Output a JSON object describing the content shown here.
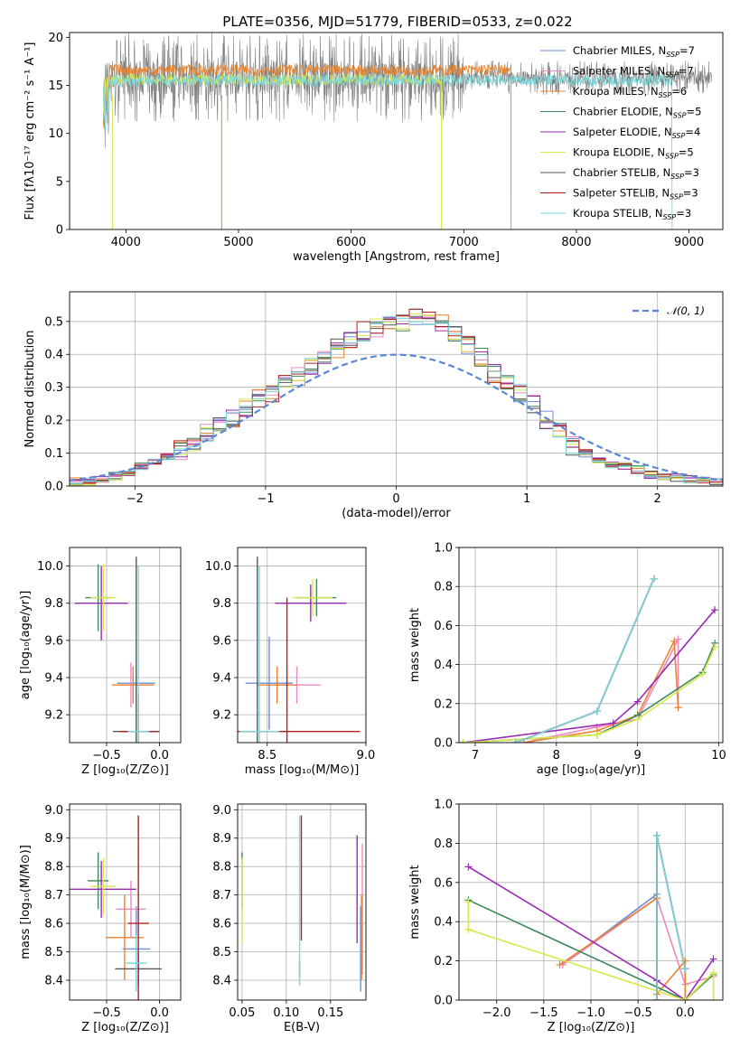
{
  "title": "PLATE=0356, MJD=51779, FIBERID=0533, z=0.022",
  "colors": {
    "Chabrier MILES": "#6b8fd8",
    "Salpeter MILES": "#ee88c4",
    "Kroupa MILES": "#e8832e",
    "Chabrier ELODIE": "#3a8a5a",
    "Salpeter ELODIE": "#9a2ab5",
    "Kroupa ELODIE": "#d6e84a",
    "Chabrier STELIB": "#555555",
    "Salpeter STELIB": "#b41e1e",
    "Kroupa STELIB": "#78d8dc",
    "data": "#808080",
    "gauss": "#5b86d6"
  },
  "chart_data": [
    {
      "id": "spectrum",
      "type": "line",
      "xlabel": "wavelength [Angstrom, rest frame]",
      "ylabel": "Flux [fλ10⁻¹⁷ erg cm⁻² s⁻¹ A⁻¹]",
      "xlim": [
        3500,
        9300
      ],
      "ylim": [
        0,
        20.5
      ],
      "xticks": [
        4000,
        5000,
        6000,
        7000,
        8000,
        9000
      ],
      "yticks": [
        0,
        5,
        10,
        15,
        20
      ],
      "grid": false,
      "legend": "upper right",
      "legend_entries": [
        {
          "label": "Chabrier MILES, N",
          "sub": "SSP",
          "suffix": "=7",
          "model": "Chabrier MILES"
        },
        {
          "label": "Salpeter MILES, N",
          "sub": "SSP",
          "suffix": "=7",
          "model": "Salpeter MILES"
        },
        {
          "label": "Kroupa MILES, N",
          "sub": "SSP",
          "suffix": "=6",
          "model": "Kroupa MILES"
        },
        {
          "label": "Chabrier ELODIE, N",
          "sub": "SSP",
          "suffix": "=5",
          "model": "Chabrier ELODIE"
        },
        {
          "label": "Salpeter ELODIE, N",
          "sub": "SSP",
          "suffix": "=4",
          "model": "Salpeter ELODIE"
        },
        {
          "label": "Kroupa ELODIE, N",
          "sub": "SSP",
          "suffix": "=5",
          "model": "Kroupa ELODIE"
        },
        {
          "label": "Chabrier STELIB, N",
          "sub": "SSP",
          "suffix": "=3",
          "model": "Chabrier STELIB"
        },
        {
          "label": "Salpeter STELIB, N",
          "sub": "SSP",
          "suffix": "=3",
          "model": "Salpeter STELIB"
        },
        {
          "label": "Kroupa STELIB, N",
          "sub": "SSP",
          "suffix": "=3",
          "model": "Kroupa STELIB"
        }
      ],
      "data_range": [
        3800,
        9200
      ],
      "data_level": 15.8,
      "models": [
        {
          "model": "Kroupa MILES",
          "range": [
            3800,
            7420
          ],
          "level": 16.6
        },
        {
          "model": "Kroupa ELODIE",
          "range": [
            3800,
            6800
          ],
          "level": 15.6
        },
        {
          "model": "Kroupa STELIB",
          "range": [
            3800,
            8850
          ],
          "level": 15.5
        }
      ]
    },
    {
      "id": "residuals",
      "type": "histogram",
      "xlabel": "(data-model)/error",
      "ylabel": "Normed distribution",
      "xlim": [
        -2.5,
        2.5
      ],
      "ylim": [
        0,
        0.59
      ],
      "xticks": [
        -2,
        -1,
        0,
        1,
        2
      ],
      "yticks": [
        0.0,
        0.1,
        0.2,
        0.3,
        0.4,
        0.5
      ],
      "ytick_labels": [
        "0.0",
        "0.1",
        "0.2",
        "0.3",
        "0.4",
        "0.5"
      ],
      "grid": true,
      "legend": "upper right",
      "gauss_label": "𝒩(0, 1)",
      "bin_width": 0.1,
      "bin_start": -2.5,
      "base_heights": [
        0.015,
        0.015,
        0.02,
        0.03,
        0.035,
        0.06,
        0.07,
        0.09,
        0.11,
        0.125,
        0.16,
        0.19,
        0.21,
        0.24,
        0.27,
        0.28,
        0.31,
        0.33,
        0.36,
        0.39,
        0.42,
        0.45,
        0.47,
        0.48,
        0.49,
        0.5,
        0.52,
        0.51,
        0.49,
        0.47,
        0.43,
        0.39,
        0.34,
        0.31,
        0.28,
        0.25,
        0.2,
        0.16,
        0.12,
        0.1,
        0.08,
        0.065,
        0.06,
        0.05,
        0.035,
        0.03,
        0.025,
        0.02,
        0.015,
        0.015
      ]
    },
    {
      "id": "age-vs-Z",
      "type": "errorbar",
      "xlabel": "Z [log₁₀(Z/Z⊙)]",
      "ylabel": "age  [log₁₀(age/yr)]",
      "xlim": [
        -0.85,
        0.2
      ],
      "ylim": [
        9.05,
        10.1
      ],
      "xticks": [
        -0.5,
        0.0
      ],
      "xtick_labels": [
        "−0.5",
        "0.0"
      ],
      "yticks": [
        9.2,
        9.4,
        9.6,
        9.8,
        10.0
      ],
      "ytick_labels": [
        "9.2",
        "9.4",
        "9.6",
        "9.8",
        "10.0"
      ],
      "grid": true,
      "points": [
        {
          "model": "Chabrier MILES",
          "x": -0.22,
          "y": 9.37,
          "xerr": 0.18,
          "yerr": 0.1
        },
        {
          "model": "Salpeter MILES",
          "x": -0.27,
          "y": 9.36,
          "xerr": 0.14,
          "yerr": 0.12
        },
        {
          "model": "Kroupa MILES",
          "x": -0.25,
          "y": 9.36,
          "xerr": 0.2,
          "yerr": 0.1
        },
        {
          "model": "Chabrier ELODIE",
          "x": -0.58,
          "y": 9.83,
          "xerr": 0.12,
          "yerr": 0.18
        },
        {
          "model": "Salpeter ELODIE",
          "x": -0.55,
          "y": 9.8,
          "xerr": 0.25,
          "yerr": 0.2
        },
        {
          "model": "Kroupa ELODIE",
          "x": -0.53,
          "y": 9.83,
          "xerr": 0.12,
          "yerr": 0.18
        },
        {
          "model": "Chabrier STELIB",
          "x": -0.22,
          "y": 9.11,
          "xerr": 0.22,
          "yerr": 0.94
        },
        {
          "model": "Salpeter STELIB",
          "x": -0.2,
          "y": 9.11,
          "xerr": 0.18,
          "yerr": 0.2
        },
        {
          "model": "Kroupa STELIB",
          "x": -0.2,
          "y": 9.11,
          "xerr": 0.1,
          "yerr": 0.89
        }
      ]
    },
    {
      "id": "age-vs-mass",
      "type": "errorbar",
      "xlabel": "mass [log₁₀(M/M⊙)]",
      "ylabel": "",
      "xlim": [
        8.35,
        9.0
      ],
      "ylim": [
        9.05,
        10.1
      ],
      "xticks": [
        8.5,
        9.0
      ],
      "xtick_labels": [
        "8.5",
        "9.0"
      ],
      "yticks": [
        9.2,
        9.4,
        9.6,
        9.8,
        10.0
      ],
      "ytick_labels": [
        "9.2",
        "9.4",
        "9.6",
        "9.8",
        "10.0"
      ],
      "grid": true,
      "points": [
        {
          "model": "Chabrier MILES",
          "x": 8.51,
          "y": 9.37,
          "xerr": 0.12,
          "yerr": 0.25
        },
        {
          "model": "Salpeter MILES",
          "x": 8.65,
          "y": 9.36,
          "xerr": 0.12,
          "yerr": 0.1
        },
        {
          "model": "Kroupa MILES",
          "x": 8.55,
          "y": 9.36,
          "xerr": 0.1,
          "yerr": 0.1
        },
        {
          "model": "Chabrier ELODIE",
          "x": 8.75,
          "y": 9.83,
          "xerr": 0.1,
          "yerr": 0.1
        },
        {
          "model": "Salpeter ELODIE",
          "x": 8.72,
          "y": 9.8,
          "xerr": 0.18,
          "yerr": 0.1
        },
        {
          "model": "Kroupa ELODIE",
          "x": 8.73,
          "y": 9.83,
          "xerr": 0.1,
          "yerr": 0.1
        },
        {
          "model": "Chabrier STELIB",
          "x": 8.45,
          "y": 9.11,
          "xerr": 0.06,
          "yerr": 0.94
        },
        {
          "model": "Salpeter STELIB",
          "x": 8.6,
          "y": 9.11,
          "xerr": 0.37,
          "yerr": 0.72
        },
        {
          "model": "Kroupa STELIB",
          "x": 8.46,
          "y": 9.11,
          "xerr": 0.1,
          "yerr": 0.89
        }
      ]
    },
    {
      "id": "weight-vs-age",
      "type": "line",
      "xlabel": "age  [log₁₀(age/yr)]",
      "ylabel": "mass weight",
      "xlim": [
        6.8,
        10.05
      ],
      "ylim": [
        0,
        1.0
      ],
      "xticks": [
        7,
        8,
        9,
        10
      ],
      "xtick_labels": [
        "7",
        "8",
        "9",
        "10"
      ],
      "yticks": [
        0.0,
        0.2,
        0.4,
        0.6,
        0.8,
        1.0
      ],
      "ytick_labels": [
        "0.0",
        "0.2",
        "0.4",
        "0.6",
        "0.8",
        "1.0"
      ],
      "grid": true,
      "series": [
        {
          "model": "Chabrier MILES",
          "x": [
            7.5,
            8.5,
            9.2
          ],
          "y": [
            0.0,
            0.16,
            0.84
          ]
        },
        {
          "model": "Salpeter MILES",
          "x": [
            7.6,
            8.5,
            9.0,
            9.5,
            9.5
          ],
          "y": [
            0.0,
            0.08,
            0.12,
            0.53,
            0.18
          ]
        },
        {
          "model": "Kroupa MILES",
          "x": [
            7.6,
            8.5,
            9.0,
            9.45,
            9.5
          ],
          "y": [
            0.0,
            0.06,
            0.14,
            0.52,
            0.18
          ]
        },
        {
          "model": "Chabrier ELODIE",
          "x": [
            6.85,
            8.5,
            9.0,
            9.8,
            9.95
          ],
          "y": [
            0.0,
            0.04,
            0.14,
            0.36,
            0.51
          ]
        },
        {
          "model": "Salpeter ELODIE",
          "x": [
            6.85,
            8.7,
            9.0,
            9.95
          ],
          "y": [
            0.0,
            0.1,
            0.21,
            0.68
          ]
        },
        {
          "model": "Kroupa ELODIE",
          "x": [
            6.85,
            8.5,
            9.0,
            9.8,
            9.95
          ],
          "y": [
            0.0,
            0.04,
            0.12,
            0.35,
            0.49
          ]
        },
        {
          "model": "Chabrier STELIB",
          "x": [
            7.5,
            8.5,
            9.2
          ],
          "y": [
            0.0,
            0.16,
            0.84
          ]
        },
        {
          "model": "Salpeter STELIB",
          "x": [
            7.5,
            8.5,
            9.2
          ],
          "y": [
            0.0,
            0.16,
            0.84
          ]
        },
        {
          "model": "Kroupa STELIB",
          "x": [
            7.5,
            8.5,
            9.2
          ],
          "y": [
            0.0,
            0.16,
            0.84
          ]
        }
      ]
    },
    {
      "id": "mass-vs-Z",
      "type": "errorbar",
      "xlabel": "Z [log₁₀(Z/Z⊙)]",
      "ylabel": "mass [log₁₀(M/M⊙)]",
      "xlim": [
        -0.85,
        0.2
      ],
      "ylim": [
        8.33,
        9.02
      ],
      "xticks": [
        -0.5,
        0.0
      ],
      "xtick_labels": [
        "−0.5",
        "0.0"
      ],
      "yticks": [
        8.4,
        8.5,
        8.6,
        8.7,
        8.8,
        8.9,
        9.0
      ],
      "ytick_labels": [
        "8.4",
        "8.5",
        "8.6",
        "8.7",
        "8.8",
        "8.9",
        "9.0"
      ],
      "grid": true,
      "points": [
        {
          "model": "Chabrier MILES",
          "x": -0.22,
          "y": 8.51,
          "xerr": 0.13,
          "yerr": 0.15
        },
        {
          "model": "Salpeter MILES",
          "x": -0.27,
          "y": 8.65,
          "xerr": 0.14,
          "yerr": 0.1
        },
        {
          "model": "Kroupa MILES",
          "x": -0.33,
          "y": 8.55,
          "xerr": 0.18,
          "yerr": 0.15
        },
        {
          "model": "Chabrier ELODIE",
          "x": -0.58,
          "y": 8.75,
          "xerr": 0.1,
          "yerr": 0.1
        },
        {
          "model": "Salpeter ELODIE",
          "x": -0.55,
          "y": 8.72,
          "xerr": 0.33,
          "yerr": 0.1
        },
        {
          "model": "Kroupa ELODIE",
          "x": -0.53,
          "y": 8.73,
          "xerr": 0.12,
          "yerr": 0.1
        },
        {
          "model": "Chabrier STELIB",
          "x": -0.2,
          "y": 8.44,
          "xerr": 0.22,
          "yerr": 0.06
        },
        {
          "model": "Salpeter STELIB",
          "x": -0.2,
          "y": 8.6,
          "xerr": 0.1,
          "yerr": 0.38
        },
        {
          "model": "Kroupa STELIB",
          "x": -0.22,
          "y": 8.46,
          "xerr": 0.1,
          "yerr": 0.1
        }
      ]
    },
    {
      "id": "mass-vs-ebv",
      "type": "errorbar",
      "xlabel": "E(B-V)",
      "ylabel": "",
      "xlim": [
        0.045,
        0.19
      ],
      "ylim": [
        8.33,
        9.02
      ],
      "xticks": [
        0.05,
        0.1,
        0.15
      ],
      "xtick_labels": [
        "0.05",
        "0.10",
        "0.15"
      ],
      "yticks": [
        8.4,
        8.5,
        8.6,
        8.7,
        8.8,
        8.9,
        9.0
      ],
      "ytick_labels": [
        "8.4",
        "8.5",
        "8.6",
        "8.7",
        "8.8",
        "8.9",
        "9.0"
      ],
      "grid": true,
      "points": [
        {
          "model": "Chabrier MILES",
          "x": 0.184,
          "y": 8.51,
          "xerr": 0.0,
          "yerr": 0.15
        },
        {
          "model": "Salpeter MILES",
          "x": 0.186,
          "y": 8.65,
          "xerr": 0.0,
          "yerr": 0.23
        },
        {
          "model": "Kroupa MILES",
          "x": 0.185,
          "y": 8.55,
          "xerr": 0.0,
          "yerr": 0.15
        },
        {
          "model": "Chabrier ELODIE",
          "x": 0.05,
          "y": 8.75,
          "xerr": 0.0,
          "yerr": 0.1
        },
        {
          "model": "Salpeter ELODIE",
          "x": 0.18,
          "y": 8.72,
          "xerr": 0.0,
          "yerr": 0.19
        },
        {
          "model": "Kroupa ELODIE",
          "x": 0.05,
          "y": 8.68,
          "xerr": 0.0,
          "yerr": 0.15
        },
        {
          "model": "Chabrier STELIB",
          "x": 0.115,
          "y": 8.44,
          "xerr": 0.0,
          "yerr": 0.03
        },
        {
          "model": "Salpeter STELIB",
          "x": 0.117,
          "y": 8.76,
          "xerr": 0.0,
          "yerr": 0.22
        },
        {
          "model": "Kroupa STELIB",
          "x": 0.115,
          "y": 8.68,
          "xerr": 0.0,
          "yerr": 0.3
        }
      ]
    },
    {
      "id": "weight-vs-Z",
      "type": "line",
      "xlabel": "Z [log₁₀(Z/Z⊙)]",
      "ylabel": "mass weight",
      "xlim": [
        -2.4,
        0.4
      ],
      "ylim": [
        0,
        1.0
      ],
      "xticks": [
        -2.0,
        -1.5,
        -1.0,
        -0.5,
        0.0
      ],
      "xtick_labels": [
        "−2.0",
        "−1.5",
        "−1.0",
        "−0.5",
        "0.0"
      ],
      "yticks": [
        0.0,
        0.2,
        0.4,
        0.6,
        0.8,
        1.0
      ],
      "ytick_labels": [
        "0.0",
        "0.2",
        "0.4",
        "0.6",
        "0.8",
        "1.0"
      ],
      "grid": true,
      "series": [
        {
          "model": "Chabrier MILES",
          "x": [
            -1.3,
            -0.3,
            -0.3,
            0.0,
            0.0
          ],
          "y": [
            0.18,
            0.54,
            0.84,
            0.16,
            0.0
          ]
        },
        {
          "model": "Salpeter MILES",
          "x": [
            -1.3,
            -0.3,
            0.0,
            0.3
          ],
          "y": [
            0.18,
            0.52,
            0.08,
            0.12
          ]
        },
        {
          "model": "Kroupa MILES",
          "x": [
            -1.33,
            -0.3,
            -0.3,
            0.0,
            0.0
          ],
          "y": [
            0.18,
            0.52,
            0.03,
            0.2,
            0.0
          ]
        },
        {
          "model": "Chabrier ELODIE",
          "x": [
            -2.3,
            0.0,
            0.3
          ],
          "y": [
            0.51,
            0.0,
            0.13
          ]
        },
        {
          "model": "Salpeter ELODIE",
          "x": [
            -2.3,
            -0.3,
            0.0,
            0.3
          ],
          "y": [
            0.68,
            0.1,
            0.0,
            0.21
          ]
        },
        {
          "model": "Kroupa ELODIE",
          "x": [
            -2.3,
            -2.3,
            0.0,
            0.3,
            0.3
          ],
          "y": [
            0.5,
            0.36,
            0.0,
            0.14,
            0.0
          ]
        },
        {
          "model": "Chabrier STELIB",
          "x": [
            -0.3,
            -0.3,
            0.0
          ],
          "y": [
            0.0,
            0.84,
            0.16
          ]
        },
        {
          "model": "Salpeter STELIB",
          "x": [
            -0.3,
            -0.3,
            0.0
          ],
          "y": [
            0.0,
            0.84,
            0.16
          ]
        },
        {
          "model": "Kroupa STELIB",
          "x": [
            -0.3,
            -0.3,
            0.0
          ],
          "y": [
            0.0,
            0.84,
            0.16
          ]
        }
      ]
    }
  ]
}
